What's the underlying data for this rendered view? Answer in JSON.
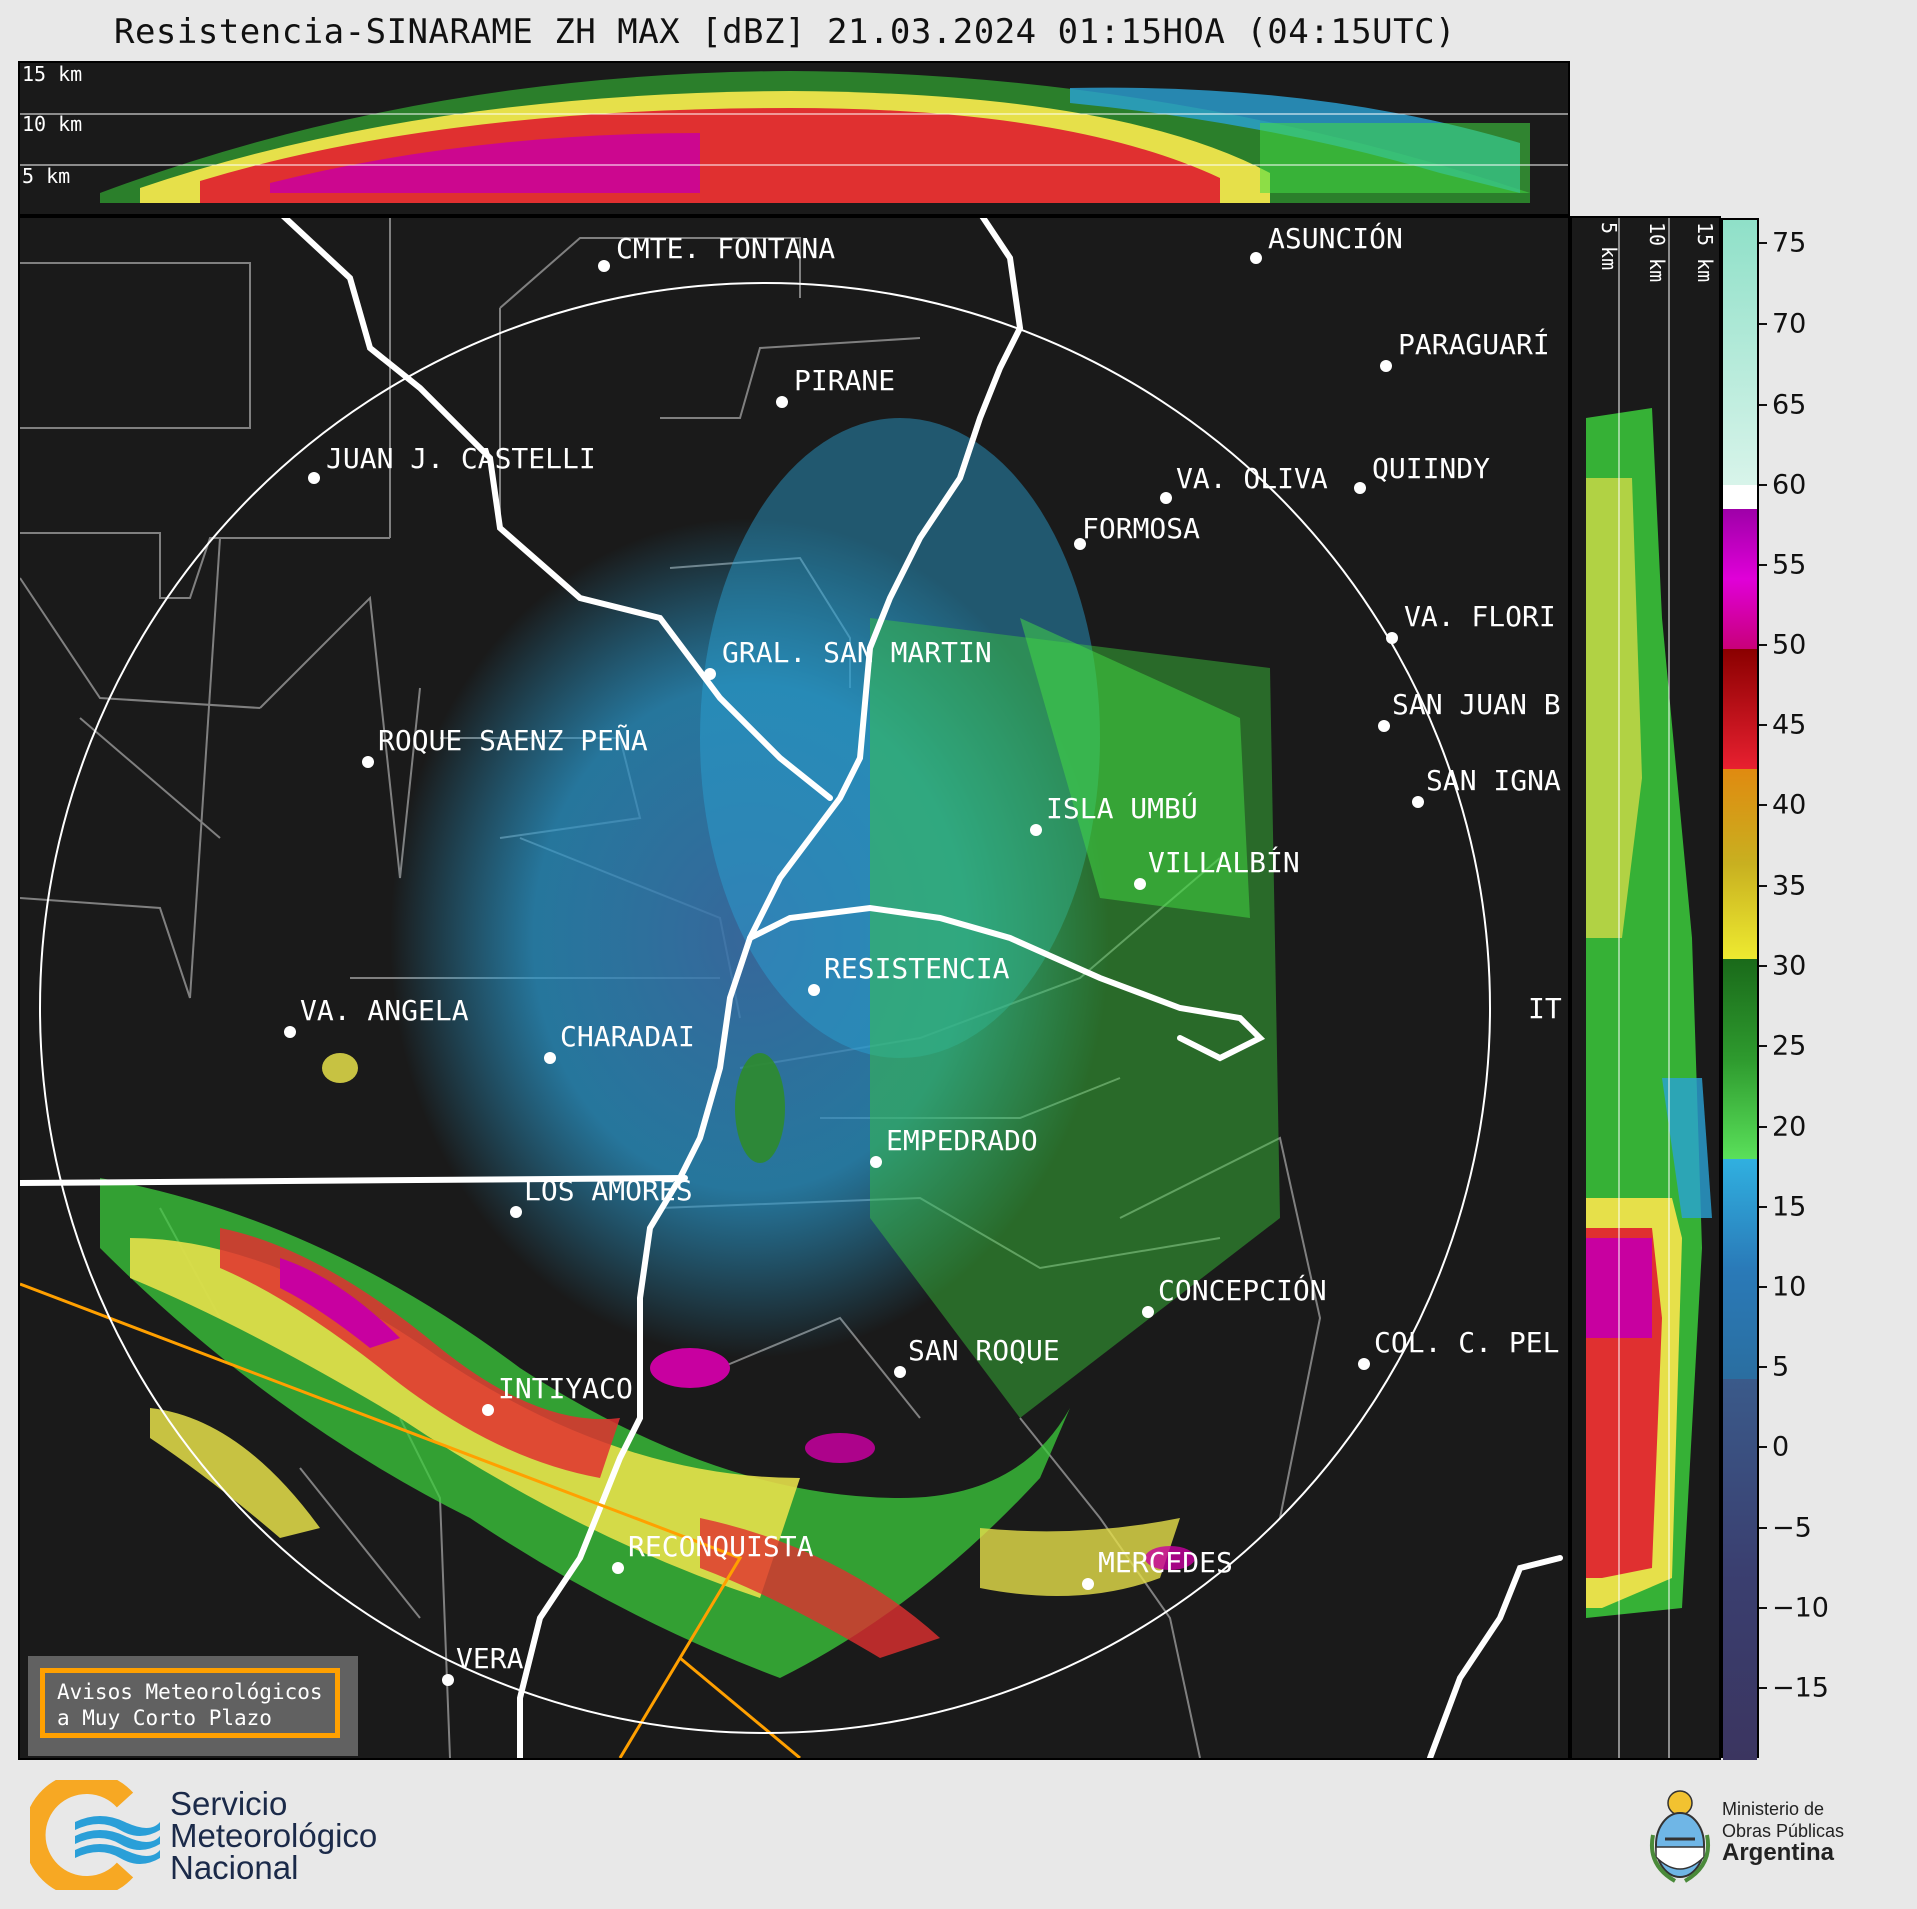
{
  "title": "Resistencia-SINARAME ZH MAX [dBZ] 21.03.2024 01:15HOA (04:15UTC)",
  "top_panel": {
    "height_labels": [
      "15 km",
      "10 km",
      "5 km"
    ]
  },
  "side_panel": {
    "height_labels": [
      "5 km",
      "10 km",
      "15 km"
    ]
  },
  "colorbar": {
    "unit": "dBZ",
    "tick_labels": [
      "75",
      "70",
      "65",
      "60",
      "55",
      "50",
      "45",
      "40",
      "35",
      "30",
      "25",
      "20",
      "15",
      "10",
      "5",
      "0",
      "−5",
      "−10",
      "−15"
    ],
    "colors": {
      "range_-20_0": "#3b3f6e",
      "range_0_10": "#3a6fa8",
      "range_10_18": "#2aa3d6",
      "range_18_30": "#2e8b2e",
      "range_30_40": "#e6e04a",
      "range_40_48": "#e03030",
      "range_48_60": "#c800a0",
      "range_60_75": "#a8e8d0"
    }
  },
  "cities": [
    {
      "name": "CMTE. FONTANA"
    },
    {
      "name": "ASUNCIÓN"
    },
    {
      "name": "PARAGUARÍ"
    },
    {
      "name": "PIRANE"
    },
    {
      "name": "JUAN J. CASTELLI"
    },
    {
      "name": "VA. OLIVA"
    },
    {
      "name": "QUIINDY"
    },
    {
      "name": "FORMOSA"
    },
    {
      "name": "VA. FLORI"
    },
    {
      "name": "GRAL. SAN MARTIN"
    },
    {
      "name": "SAN JUAN B"
    },
    {
      "name": "ROQUE SAENZ PEÑA"
    },
    {
      "name": "SAN IGNA"
    },
    {
      "name": "ISLA UMBÚ"
    },
    {
      "name": "VILLALBÍN"
    },
    {
      "name": "RESISTENCIA"
    },
    {
      "name": "VA. ANGELA"
    },
    {
      "name": "CHARADAI"
    },
    {
      "name": "IT"
    },
    {
      "name": "EMPEDRADO"
    },
    {
      "name": "LOS AMORES"
    },
    {
      "name": "CONCEPCIÓN"
    },
    {
      "name": "COL. C. PEL"
    },
    {
      "name": "SAN ROQUE"
    },
    {
      "name": "INTIYACO"
    },
    {
      "name": "RECONQUISTA"
    },
    {
      "name": "MERCEDES"
    },
    {
      "name": "VERA"
    }
  ],
  "warning_box": {
    "line1": "Avisos Meteorológicos",
    "line2": "a Muy Corto Plazo"
  },
  "footer": {
    "smn_line1": "Servicio",
    "smn_line2": "Meteorológico",
    "smn_line3": "Nacional",
    "ministry_line1": "Ministerio de",
    "ministry_line2": "Obras Públicas",
    "ministry_line3": "Argentina"
  },
  "colors": {
    "background": "#e8e8e8",
    "panel": "#1a1a1a",
    "warning_orange": "#ffa000",
    "smn_orange": "#f7a823",
    "smn_blue": "#2a9fd8"
  }
}
